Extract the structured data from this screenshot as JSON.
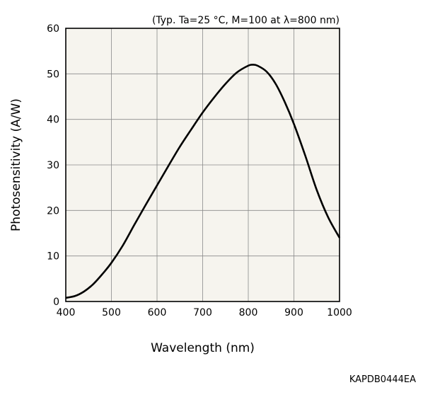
{
  "chart_data": {
    "type": "line",
    "annotation": "(Typ. Ta=25 °C, M=100 at λ=800 nm)",
    "xlabel": "Wavelength (nm)",
    "ylabel": "Photosensitivity (A/W)",
    "xlim": [
      400,
      1000
    ],
    "ylim": [
      0,
      60
    ],
    "x_ticks": [
      "400",
      "500",
      "600",
      "700",
      "800",
      "900",
      "1000"
    ],
    "y_ticks": [
      "0",
      "10",
      "20",
      "30",
      "40",
      "50",
      "60"
    ],
    "grid": true,
    "plot_background": "#f6f4ee",
    "series": [
      {
        "color": "#000000",
        "x": [
          400,
          420,
          440,
          460,
          480,
          500,
          525,
          550,
          575,
          600,
          625,
          650,
          675,
          700,
          725,
          750,
          775,
          800,
          810,
          820,
          840,
          860,
          880,
          900,
          925,
          950,
          975,
          1000
        ],
        "y": [
          0.8,
          1.2,
          2.2,
          3.8,
          6.0,
          8.5,
          12.3,
          16.8,
          21.2,
          25.5,
          29.8,
          34.0,
          37.8,
          41.5,
          44.8,
          47.8,
          50.3,
          51.8,
          52.0,
          51.8,
          50.5,
          47.8,
          43.8,
          39.0,
          32.0,
          24.5,
          18.5,
          14.0
        ]
      }
    ]
  },
  "figure_code": "KAPDB0444EA"
}
